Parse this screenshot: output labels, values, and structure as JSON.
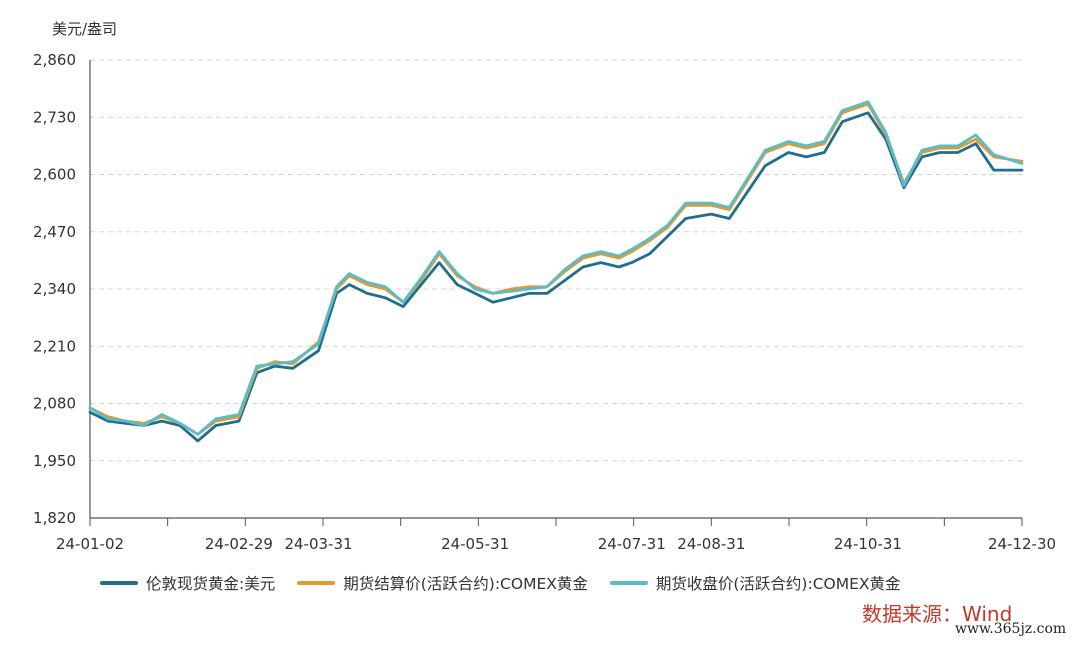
{
  "chart_data": {
    "type": "line",
    "ylabel": "美元/盎司",
    "ylim": [
      1820,
      2860
    ],
    "yticks": [
      "1,820",
      "1,950",
      "2,080",
      "2,210",
      "2,340",
      "2,470",
      "2,600",
      "2,730",
      "2,860"
    ],
    "xticks": [
      "24-01-02",
      "24-02-29",
      "24-03-31",
      "24-05-31",
      "24-07-31",
      "24-08-31",
      "24-10-31",
      "24-12-30"
    ],
    "grid": true,
    "legend_position": "bottom",
    "x": [
      "24-01-02",
      "24-01-09",
      "24-01-16",
      "24-01-23",
      "24-01-30",
      "24-02-06",
      "24-02-13",
      "24-02-20",
      "24-02-29",
      "24-03-07",
      "24-03-14",
      "24-03-21",
      "24-03-31",
      "24-04-07",
      "24-04-12",
      "24-04-19",
      "24-04-26",
      "24-05-03",
      "24-05-10",
      "24-05-17",
      "24-05-24",
      "24-05-31",
      "24-06-07",
      "24-06-14",
      "24-06-21",
      "24-06-28",
      "24-07-05",
      "24-07-12",
      "24-07-19",
      "24-07-26",
      "24-07-31",
      "24-08-07",
      "24-08-14",
      "24-08-21",
      "24-08-31",
      "24-09-07",
      "24-09-14",
      "24-09-21",
      "24-09-30",
      "24-10-07",
      "24-10-14",
      "24-10-21",
      "24-10-31",
      "24-11-07",
      "24-11-14",
      "24-11-21",
      "24-11-28",
      "24-12-05",
      "24-12-12",
      "24-12-19",
      "24-12-30"
    ],
    "series": [
      {
        "name": "伦敦现货黄金:美元",
        "color": "#1f6e8c",
        "values": [
          2060,
          2040,
          2035,
          2030,
          2040,
          2030,
          1995,
          2030,
          2040,
          2150,
          2165,
          2160,
          2200,
          2330,
          2350,
          2330,
          2320,
          2300,
          2350,
          2400,
          2350,
          2330,
          2310,
          2320,
          2330,
          2330,
          2360,
          2390,
          2400,
          2390,
          2400,
          2420,
          2460,
          2500,
          2510,
          2500,
          2560,
          2620,
          2650,
          2640,
          2650,
          2720,
          2740,
          2680,
          2570,
          2640,
          2650,
          2650,
          2670,
          2610,
          2610
        ]
      },
      {
        "name": "期货结算价(活跃合约):COMEX黄金",
        "color": "#e39a2b",
        "values": [
          2070,
          2050,
          2040,
          2035,
          2050,
          2035,
          2010,
          2040,
          2050,
          2160,
          2175,
          2170,
          2220,
          2340,
          2370,
          2350,
          2340,
          2310,
          2360,
          2420,
          2370,
          2345,
          2330,
          2340,
          2345,
          2345,
          2380,
          2410,
          2420,
          2410,
          2425,
          2450,
          2480,
          2530,
          2530,
          2520,
          2585,
          2650,
          2670,
          2660,
          2670,
          2740,
          2760,
          2690,
          2580,
          2650,
          2660,
          2660,
          2680,
          2640,
          2630
        ]
      },
      {
        "name": "期货收盘价(活跃合约):COMEX黄金",
        "color": "#5bbcc9",
        "values": [
          2070,
          2045,
          2040,
          2030,
          2055,
          2035,
          2010,
          2045,
          2055,
          2165,
          2170,
          2175,
          2215,
          2345,
          2375,
          2355,
          2345,
          2310,
          2365,
          2425,
          2375,
          2340,
          2330,
          2335,
          2340,
          2345,
          2385,
          2415,
          2425,
          2415,
          2430,
          2455,
          2485,
          2535,
          2535,
          2525,
          2590,
          2655,
          2675,
          2665,
          2675,
          2745,
          2765,
          2695,
          2575,
          2655,
          2665,
          2665,
          2690,
          2645,
          2625
        ]
      }
    ]
  },
  "source_text": "数据来源：Wind",
  "watermark_text": "www.365jz.com"
}
